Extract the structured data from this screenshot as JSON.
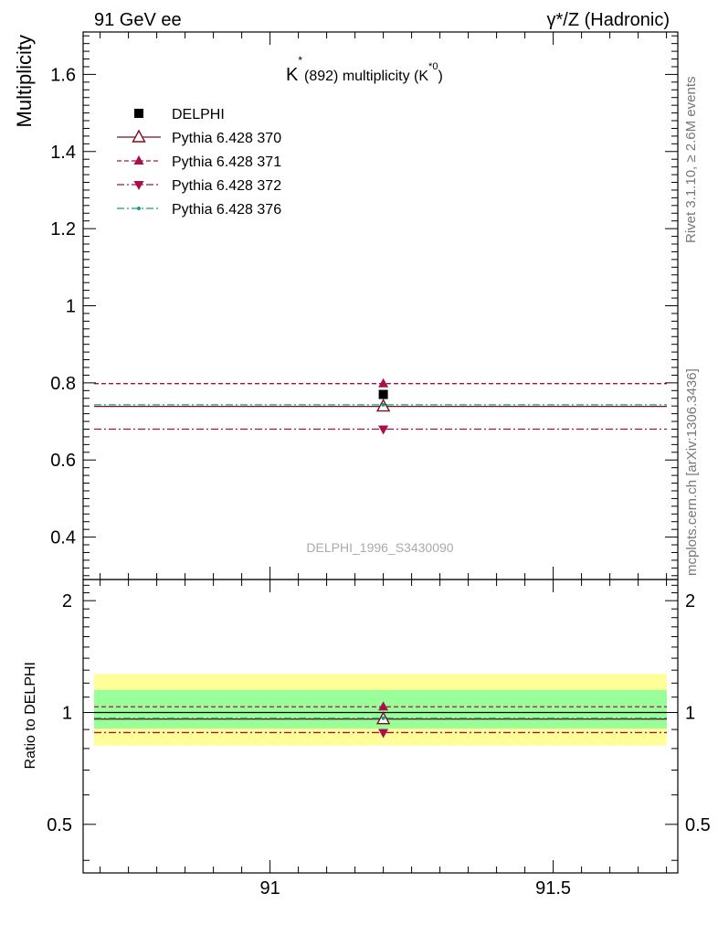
{
  "header": {
    "left": "91 GeV ee",
    "right": "γ*/Z (Hadronic)"
  },
  "side_labels": {
    "rivet": "Rivet 3.1.10, ≥ 2.6M events",
    "mcplots": "mcplots.cern.ch [arXiv:1306.3436]"
  },
  "chart_data": [
    {
      "type": "scatter",
      "panel": "main",
      "title_main": "K",
      "title_sup": "*",
      "title_rest": "(892) multiplicity (K",
      "title_sup2": "*0",
      "title_end": ")",
      "ylabel": "Multiplicity",
      "watermark": "DELPHI_1996_S3430090",
      "xlim": [
        90.67,
        91.72
      ],
      "ylim": [
        0.29,
        1.71
      ],
      "yticks": [
        0.4,
        0.6,
        0.8,
        1,
        1.2,
        1.4,
        1.6
      ],
      "ytick_labels": [
        "0.4",
        "0.6",
        "0.8",
        "1",
        "1.2",
        "1.4",
        "1.6"
      ],
      "data": {
        "name": "DELPHI",
        "x": 91.2,
        "y": 0.77,
        "color": "#000000"
      },
      "series": [
        {
          "name": "Pythia 6.428 370",
          "y": 0.739,
          "color": "#7a1020",
          "marker": "triangle-up-open",
          "dash": "solid"
        },
        {
          "name": "Pythia 6.428 371",
          "y": 0.798,
          "color": "#a8104c",
          "marker": "triangle-up",
          "dash": "dashed"
        },
        {
          "name": "Pythia 6.428 372",
          "y": 0.68,
          "color": "#a8104c",
          "marker": "triangle-down",
          "dash": "dashdot"
        },
        {
          "name": "Pythia 6.428 376",
          "y": 0.743,
          "color": "#14a07c",
          "marker": "dot",
          "dash": "dashdot"
        }
      ],
      "legend_placement": "top-left"
    },
    {
      "type": "scatter",
      "panel": "ratio",
      "ylabel": "Ratio to DELPHI",
      "xlim": [
        90.67,
        91.72
      ],
      "ylim": [
        0.37,
        2.28
      ],
      "yscale": "log",
      "yticks": [
        0.5,
        1,
        2
      ],
      "ytick_labels": [
        "0.5",
        "1",
        "2"
      ],
      "xticks": [
        91,
        91.5
      ],
      "xtick_labels": [
        "91",
        "91.5"
      ],
      "band_outer": {
        "lo": 0.815,
        "hi": 1.27,
        "color": "#ffff99"
      },
      "band_inner": {
        "lo": 0.905,
        "hi": 1.15,
        "color": "#99ff99"
      },
      "ratios": [
        {
          "name": "Pythia 6.428 370",
          "value": 0.96
        },
        {
          "name": "Pythia 6.428 371",
          "value": 1.036
        },
        {
          "name": "Pythia 6.428 372",
          "value": 0.883
        },
        {
          "name": "Pythia 6.428 376",
          "value": 0.965
        }
      ]
    }
  ]
}
